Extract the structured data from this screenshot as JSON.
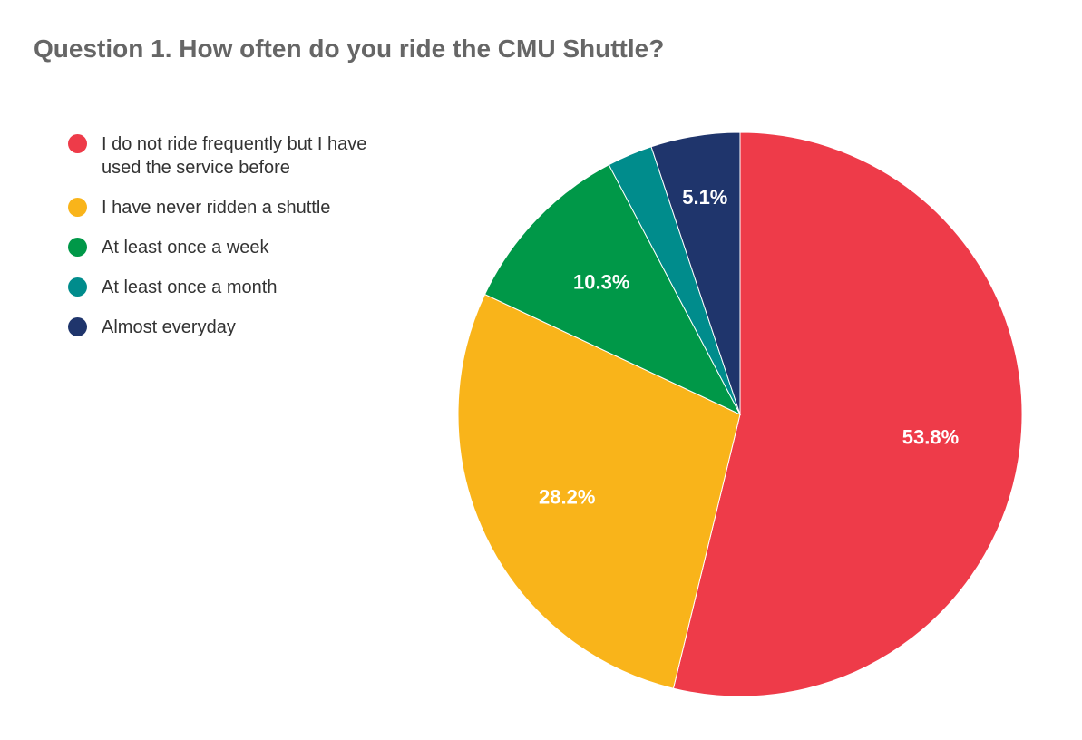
{
  "chart_data": {
    "type": "pie",
    "title": "Question 1. How often do you ride the CMU Shuttle?",
    "legend_position": "left",
    "slices": [
      {
        "label": "I do not ride frequently but I have used the service before",
        "value": 53.8,
        "data_label": "53.8%",
        "color": "#EE3B49"
      },
      {
        "label": "I have never ridden a shuttle",
        "value": 28.2,
        "data_label": "28.2%",
        "color": "#F9B41A"
      },
      {
        "label": "At least once a week",
        "value": 10.3,
        "data_label": "10.3%",
        "color": "#009848"
      },
      {
        "label": "At least once a month",
        "value": 2.6,
        "data_label": "",
        "color": "#008C8C"
      },
      {
        "label": "Almost everyday",
        "value": 5.1,
        "data_label": "5.1%",
        "color": "#1F356C"
      }
    ]
  }
}
